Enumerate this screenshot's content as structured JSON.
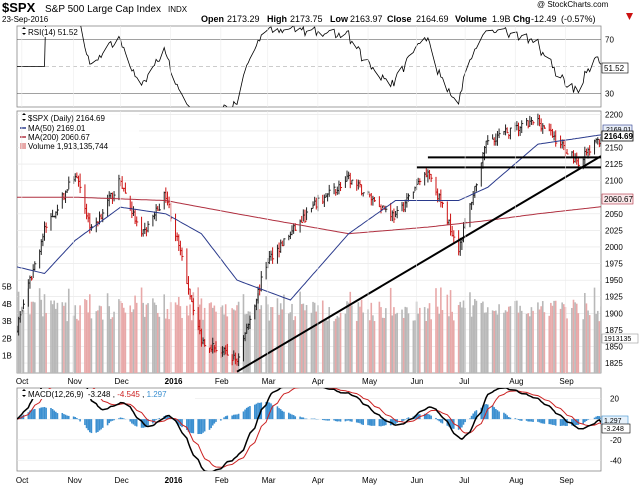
{
  "header": {
    "symbol": "$SPX",
    "name": "S&P 500 Large Cap Index",
    "exchange": "INDX",
    "date": "23-Sep-2016",
    "watermark": "@ StockCharts.com",
    "open_label": "Open",
    "open": "2173.29",
    "high_label": "High",
    "high": "2173.75",
    "low_label": "Low",
    "low": "2163.97",
    "close_label": "Close",
    "close": "2164.69",
    "volume_label": "Volume",
    "volume": "1.9B",
    "chg_label": "Chg",
    "chg": "-12.49",
    "chg_pct": "(-0.57%)",
    "chg_arrow": "down-arrow-icon"
  },
  "rsi_panel": {
    "legend": "RSI(14) 51.52",
    "value_tag": "51.52",
    "ticks": [
      {
        "label": "70",
        "value": 70
      },
      {
        "label": "50",
        "value": 50
      },
      {
        "label": "30",
        "value": 30
      }
    ]
  },
  "price_panel": {
    "legend": {
      "title": "$SPX (Daily) 2164.69",
      "ma50": "MA(50) 2169.01",
      "ma200": "MA(200) 2060.67",
      "volume": "Volume 1,913,135,744"
    },
    "tags": {
      "close": "2164.69",
      "ma50": "2169.01",
      "ma200": "2060.67",
      "volume": "1913135"
    },
    "price_ticks": [
      "2200",
      "2175",
      "2150",
      "2125",
      "2100",
      "2075",
      "2050",
      "2025",
      "2000",
      "1975",
      "1950",
      "1925",
      "1900",
      "1875",
      "1850",
      "1825"
    ],
    "volume_ticks": [
      "5B",
      "4B",
      "3B",
      "2B",
      "1B"
    ]
  },
  "macd_panel": {
    "legend_prefix": "MACD(12,26,9)",
    "macd": "-3.248",
    "signal": "-4.545",
    "histogram": "1.297",
    "tags": {
      "hist": "1.297",
      "macd": "-3.248"
    },
    "ticks": [
      {
        "label": "20",
        "value": 20
      },
      {
        "label": "0",
        "value": 0
      },
      {
        "label": "-20",
        "value": -20
      },
      {
        "label": "-40",
        "value": -40
      }
    ]
  },
  "x_axis": [
    {
      "label": "Oct",
      "bold": false
    },
    {
      "label": "Nov",
      "bold": false
    },
    {
      "label": "Dec",
      "bold": false
    },
    {
      "label": "2016",
      "bold": true
    },
    {
      "label": "Feb",
      "bold": false
    },
    {
      "label": "Mar",
      "bold": false
    },
    {
      "label": "Apr",
      "bold": false
    },
    {
      "label": "May",
      "bold": false
    },
    {
      "label": "Jun",
      "bold": false
    },
    {
      "label": "Jul",
      "bold": false
    },
    {
      "label": "Aug",
      "bold": false
    },
    {
      "label": "Sep",
      "bold": false
    }
  ],
  "colors": {
    "ma50": "#2a3a8c",
    "ma200": "#b03040",
    "up": "#222222",
    "down": "#cc1111",
    "volume": "#e8a8a8",
    "volume_up": "#b8b8b8",
    "macd_line": "#000000",
    "signal_line": "#cc2222",
    "histogram": "#3b8fd0",
    "trendline": "#000000",
    "close_tag": "#000000",
    "ma50_tag": "#2a3a8c",
    "ma200_tag": "#b03040"
  },
  "chart_data": {
    "type": "line",
    "title": "$SPX (Daily) 2164.69",
    "xlabel": "",
    "ylabel": "",
    "ylim": [
      1810,
      2205
    ],
    "date_range": [
      "2015-09-28",
      "2016-09-23"
    ],
    "series": [
      {
        "name": "Close",
        "x": [
          "2015-09-28",
          "2015-10-15",
          "2015-11-03",
          "2015-11-13",
          "2015-12-01",
          "2015-12-14",
          "2015-12-29",
          "2016-01-20",
          "2016-02-11",
          "2016-03-01",
          "2016-03-31",
          "2016-04-20",
          "2016-05-19",
          "2016-06-08",
          "2016-06-27",
          "2016-07-15",
          "2016-08-15",
          "2016-09-09",
          "2016-09-23"
        ],
        "values": [
          1880,
          2025,
          2110,
          2025,
          2100,
          2015,
          2080,
          1860,
          1829,
          1980,
          2065,
          2102,
          2045,
          2117,
          1998,
          2162,
          2190,
          2128,
          2164.69
        ]
      },
      {
        "name": "MA(50)",
        "x": [
          "2015-09-28",
          "2015-10-15",
          "2015-11-03",
          "2015-12-01",
          "2015-12-29",
          "2016-01-20",
          "2016-02-11",
          "2016-03-15",
          "2016-04-20",
          "2016-05-19",
          "2016-06-27",
          "2016-07-15",
          "2016-08-15",
          "2016-09-23"
        ],
        "values": [
          1970,
          1960,
          2010,
          2060,
          2050,
          2020,
          1950,
          1920,
          2020,
          2070,
          2070,
          2090,
          2155,
          2169.01
        ]
      },
      {
        "name": "MA(200)",
        "x": [
          "2015-09-28",
          "2015-11-03",
          "2015-12-29",
          "2016-01-20",
          "2016-02-11",
          "2016-04-20",
          "2016-06-08",
          "2016-07-15",
          "2016-08-15",
          "2016-09-23"
        ],
        "values": [
          2075,
          2075,
          2070,
          2060,
          2050,
          2020,
          2030,
          2040,
          2050,
          2060.67
        ]
      },
      {
        "name": "Trendline",
        "x": [
          "2016-02-11",
          "2016-09-23"
        ],
        "values": [
          1812,
          2137
        ]
      },
      {
        "name": "Resistance",
        "x": [
          "2016-06-08",
          "2016-09-23"
        ],
        "values": [
          2135,
          2135
        ]
      },
      {
        "name": "Support",
        "x": [
          "2016-06-01",
          "2016-09-23"
        ],
        "values": [
          2120,
          2120
        ]
      }
    ],
    "volume_range_B": [
      0,
      5.5
    ],
    "rsi": {
      "range": [
        20,
        80
      ],
      "levels": [
        70,
        50,
        30
      ],
      "last": 51.52
    },
    "macd": {
      "range": [
        -50,
        30
      ],
      "last": {
        "macd": -3.248,
        "signal": -4.545,
        "histogram": 1.297
      }
    }
  }
}
